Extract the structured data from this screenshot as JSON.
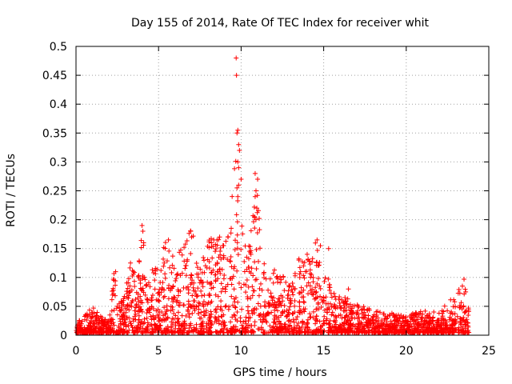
{
  "chart_data": {
    "type": "scatter",
    "title": "Day 155 of 2014, Rate Of TEC Index for receiver whit",
    "xlabel": "GPS time / hours",
    "ylabel": "ROTI / TECUs",
    "xlim": [
      0,
      25
    ],
    "ylim": [
      0,
      0.5
    ],
    "x_ticks": [
      0,
      5,
      10,
      15,
      20,
      25
    ],
    "x_tick_labels": [
      "0",
      "5",
      "10",
      "15",
      "20",
      "25"
    ],
    "y_ticks": [
      0,
      0.05,
      0.1,
      0.15,
      0.2,
      0.25,
      0.3,
      0.35,
      0.4,
      0.45,
      0.5
    ],
    "y_tick_labels": [
      "0",
      "0.05",
      "0.1",
      "0.15",
      "0.2",
      "0.25",
      "0.3",
      "0.35",
      "0.4",
      "0.45",
      "0.5"
    ],
    "grid": true,
    "marker": "plus",
    "color": "#ff0000",
    "envelope": [
      [
        0.0,
        0.02
      ],
      [
        0.5,
        0.03
      ],
      [
        1.0,
        0.045
      ],
      [
        1.5,
        0.03
      ],
      [
        2.0,
        0.02
      ],
      [
        2.3,
        0.11
      ],
      [
        2.6,
        0.05
      ],
      [
        3.0,
        0.08
      ],
      [
        3.4,
        0.13
      ],
      [
        3.7,
        0.08
      ],
      [
        4.0,
        0.19
      ],
      [
        4.3,
        0.1
      ],
      [
        4.7,
        0.12
      ],
      [
        5.0,
        0.11
      ],
      [
        5.3,
        0.15
      ],
      [
        5.6,
        0.17
      ],
      [
        6.0,
        0.12
      ],
      [
        6.5,
        0.16
      ],
      [
        7.0,
        0.18
      ],
      [
        7.5,
        0.13
      ],
      [
        8.0,
        0.16
      ],
      [
        8.5,
        0.17
      ],
      [
        9.0,
        0.15
      ],
      [
        9.3,
        0.19
      ],
      [
        9.5,
        0.25
      ],
      [
        9.7,
        0.35
      ],
      [
        10.0,
        0.2
      ],
      [
        10.3,
        0.15
      ],
      [
        10.7,
        0.22
      ],
      [
        11.0,
        0.26
      ],
      [
        11.3,
        0.13
      ],
      [
        12.0,
        0.11
      ],
      [
        12.5,
        0.1
      ],
      [
        13.0,
        0.08
      ],
      [
        13.5,
        0.13
      ],
      [
        14.0,
        0.14
      ],
      [
        14.5,
        0.16
      ],
      [
        15.0,
        0.1
      ],
      [
        15.5,
        0.09
      ],
      [
        16.0,
        0.07
      ],
      [
        17.0,
        0.05
      ],
      [
        18.0,
        0.04
      ],
      [
        19.0,
        0.035
      ],
      [
        20.0,
        0.03
      ],
      [
        21.0,
        0.04
      ],
      [
        22.0,
        0.035
      ],
      [
        23.0,
        0.07
      ],
      [
        23.5,
        0.09
      ],
      [
        23.8,
        0.04
      ]
    ],
    "outliers": [
      [
        9.7,
        0.48
      ],
      [
        9.72,
        0.45
      ],
      [
        9.8,
        0.355
      ],
      [
        9.75,
        0.35
      ],
      [
        9.85,
        0.33
      ],
      [
        9.9,
        0.32
      ],
      [
        9.8,
        0.3
      ],
      [
        9.85,
        0.29
      ],
      [
        10.0,
        0.27
      ],
      [
        9.75,
        0.255
      ],
      [
        9.8,
        0.24
      ],
      [
        10.85,
        0.28
      ],
      [
        11.0,
        0.27
      ],
      [
        10.9,
        0.25
      ],
      [
        10.85,
        0.24
      ],
      [
        10.95,
        0.22
      ],
      [
        10.9,
        0.2
      ],
      [
        4.0,
        0.19
      ],
      [
        4.05,
        0.18
      ],
      [
        4.1,
        0.16
      ],
      [
        5.6,
        0.165
      ],
      [
        6.95,
        0.18
      ],
      [
        7.0,
        0.17
      ],
      [
        8.2,
        0.16
      ],
      [
        8.7,
        0.17
      ],
      [
        9.2,
        0.17
      ],
      [
        9.4,
        0.185
      ],
      [
        14.6,
        0.165
      ],
      [
        14.8,
        0.155
      ],
      [
        15.3,
        0.15
      ],
      [
        13.5,
        0.13
      ],
      [
        13.6,
        0.11
      ],
      [
        14.0,
        0.14
      ],
      [
        16.5,
        0.08
      ],
      [
        2.4,
        0.11
      ],
      [
        2.3,
        0.095
      ],
      [
        3.3,
        0.125
      ],
      [
        23.5,
        0.097
      ],
      [
        23.4,
        0.085
      ],
      [
        23.6,
        0.075
      ]
    ]
  }
}
